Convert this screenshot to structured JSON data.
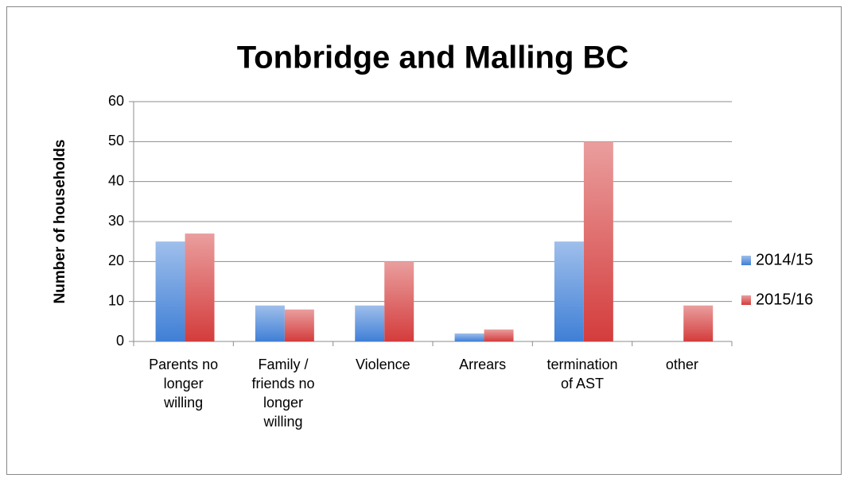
{
  "chart_data": {
    "type": "bar",
    "title": "Tonbridge and Malling BC",
    "y_label": "Number of households",
    "categories": [
      "Parents no longer willing",
      "Family / friends no longer willing",
      "Violence",
      "Arrears",
      "termination of AST",
      "other"
    ],
    "series": [
      {
        "name": "2014/15",
        "color": "#3f7fd6",
        "values": [
          25,
          9,
          9,
          2,
          25,
          0
        ]
      },
      {
        "name": "2015/16",
        "color": "#d43c3c",
        "values": [
          27,
          8,
          20,
          3,
          50,
          9
        ]
      }
    ],
    "ylim": [
      0,
      60
    ],
    "yticks": [
      0,
      10,
      20,
      30,
      40,
      50,
      60
    ],
    "grid": true,
    "legend": "right"
  }
}
